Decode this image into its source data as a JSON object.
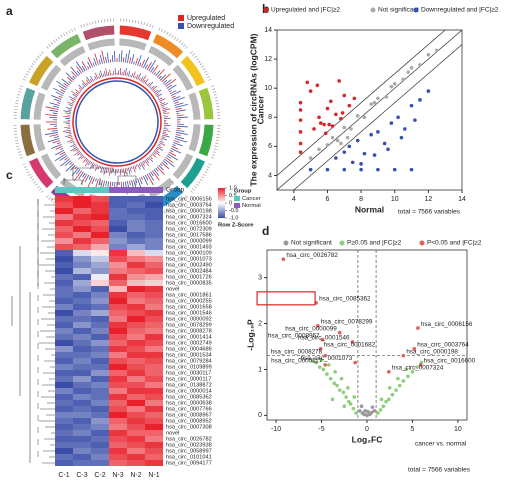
{
  "chart_data": [
    {
      "type": "circos",
      "label": "a",
      "series": [
        {
          "name": "Upregulated",
          "color": "#d62728"
        },
        {
          "name": "Downregulated",
          "color": "#3a50b0"
        }
      ]
    },
    {
      "type": "scatter",
      "label": "b",
      "title": "The expression of circRNAs (logCPM)",
      "x_label": "Normal",
      "y_label": "Cancer",
      "note": "total = 7566 variables",
      "xlim": [
        3,
        14
      ],
      "ylim": [
        3,
        14
      ],
      "xticks": [
        4,
        6,
        8,
        10,
        12,
        14
      ],
      "yticks": [
        4,
        6,
        8,
        10,
        12,
        14
      ],
      "series": [
        {
          "name": "Upregulated and |FC|≥2",
          "color": "#d62728",
          "x": [
            4.4,
            4.4,
            4.4,
            4.4,
            4.4,
            4.4,
            5.2,
            5.5,
            5.8,
            6.0,
            6.2,
            6.5,
            6.8,
            7.0,
            5.4,
            5.9,
            6.3,
            6.7,
            7.3,
            5.0,
            5.6,
            6.1,
            4.8,
            7.6,
            6.9
          ],
          "y": [
            5.6,
            6.2,
            7.0,
            7.8,
            8.5,
            9.0,
            7.2,
            8.0,
            7.5,
            8.6,
            9.1,
            8.2,
            7.9,
            9.5,
            10.2,
            6.9,
            7.4,
            10.5,
            8.8,
            9.8,
            7.6,
            7.5,
            10.4,
            9.3,
            8.3
          ]
        },
        {
          "name": "Not significant",
          "color": "#aaaaaa",
          "x": [
            5.0,
            5.5,
            6.0,
            6.3,
            6.6,
            7.0,
            7.4,
            7.8,
            8.2,
            8.6,
            9.0,
            9.5,
            10.0,
            10.5,
            11.0,
            11.5,
            12.0,
            12.5,
            6.8,
            7.2,
            9.8,
            10.8,
            8.8
          ],
          "y": [
            5.2,
            5.8,
            6.1,
            6.6,
            6.4,
            7.3,
            7.2,
            8.1,
            8.0,
            8.9,
            9.3,
            9.4,
            10.3,
            10.6,
            11.4,
            11.6,
            12.3,
            12.6,
            6.2,
            6.6,
            10.1,
            11.1,
            9.0
          ]
        },
        {
          "name": "Downregulated and |FC|≥2",
          "color": "#3a50b0",
          "x": [
            6.5,
            7.0,
            7.3,
            7.8,
            8.2,
            8.6,
            9.0,
            9.4,
            9.8,
            10.2,
            10.6,
            11.0,
            11.5,
            12.0,
            8.0,
            8.8,
            9.6,
            10.4,
            11.2,
            7.5,
            5.0,
            6.0,
            7.0,
            8.0,
            9.0,
            10.0,
            11.0
          ],
          "y": [
            5.2,
            5.6,
            6.0,
            6.4,
            5.5,
            6.8,
            7.0,
            6.2,
            7.6,
            8.0,
            7.2,
            8.8,
            9.2,
            9.8,
            4.8,
            5.4,
            5.8,
            6.6,
            7.8,
            4.9,
            4.4,
            4.4,
            4.4,
            4.4,
            4.4,
            4.4,
            4.4
          ]
        }
      ]
    },
    {
      "type": "heatmap",
      "label": "c",
      "group_bar_label": "Group",
      "columns": [
        "C-1",
        "C-3",
        "C-2",
        "N-3",
        "N-2",
        "N-1"
      ],
      "column_groups": [
        "Cancer",
        "Cancer",
        "Cancer",
        "Normal",
        "Normal",
        "Normal"
      ],
      "group_legend": {
        "title": "Group",
        "items": [
          {
            "name": "Cancer",
            "color": "#5cc6c0"
          },
          {
            "name": "Normal",
            "color": "#8a5cc0"
          }
        ]
      },
      "colorbar": {
        "title": "Row Z-Score",
        "clim": [
          -1,
          1
        ],
        "colors": [
          "#3a4ea8",
          "#ffffff",
          "#e8202a"
        ],
        "ticks": [
          {
            "value": 1,
            "label": "1.0"
          },
          0.5,
          0,
          -0.5,
          {
            "value": -1,
            "label": "-1.0"
          }
        ]
      },
      "rows": [
        "hsa_circ_0006156",
        "hsa_circ_0003764",
        "hsa_circ_0000198",
        "hsa_circ_0007324",
        "hsa_circ_0016600",
        "hsa_circ_0072309",
        "hsa_circ_0017586",
        "hsa_circ_0000099",
        "hsa_circ_0001493",
        "hsa_circ_0000109",
        "hsa_circ_0001073",
        "hsa_circ_0002490",
        "hsa_circ_0002484",
        "hsa_circ_0001726",
        "hsa_circ_0000835",
        "novel",
        "hsa_circ_0001861",
        "hsa_circ_0000255",
        "hsa_circ_0001658",
        "hsa_circ_0001546",
        "hsa_circ_0000092",
        "hsa_circ_0078299",
        "hsa_circ_0008278",
        "hsa_circ_0001414",
        "hsa_circ_0002749",
        "hsa_circ_0004686",
        "hsa_circ_0001534",
        "hsa_circ_0079284",
        "hsa_circ_0109899",
        "hsa_circ_0030117",
        "hsa_circ_0000117",
        "hsa_circ_0138872",
        "hsa_circ_0000014",
        "hsa_circ_0085362",
        "hsa_circ_0000638",
        "hsa_circ_0007766",
        "hsa_circ_0008967",
        "hsa_circ_0008952",
        "hsa_circ_0007308",
        "novel",
        "hsa_circ_0026782",
        "hsa_circ_0023938",
        "hsa_circ_0058997",
        "hsa_circ_0101041",
        "hsa_circ_0094177"
      ],
      "values": [
        [
          0.9,
          1.0,
          0.8,
          -0.9,
          -0.9,
          -0.9
        ],
        [
          0.8,
          1.0,
          0.9,
          -0.9,
          -0.8,
          -1.0
        ],
        [
          1.0,
          0.7,
          0.9,
          -0.8,
          -0.9,
          -0.9
        ],
        [
          0.6,
          0.9,
          1.0,
          -0.8,
          -0.8,
          -0.9
        ],
        [
          0.9,
          0.8,
          0.7,
          -0.9,
          -0.7,
          -0.8
        ],
        [
          0.7,
          1.0,
          0.8,
          -1.0,
          -0.7,
          -0.8
        ],
        [
          0.8,
          0.6,
          1.0,
          -0.7,
          -0.9,
          -0.8
        ],
        [
          0.5,
          0.9,
          0.7,
          -0.6,
          -0.8,
          -0.7
        ],
        [
          0.8,
          0.7,
          0.4,
          -0.7,
          -0.5,
          -0.7
        ],
        [
          -0.9,
          -0.2,
          0.1,
          0.9,
          0.3,
          -0.2
        ],
        [
          -1.0,
          -0.6,
          -0.3,
          0.8,
          0.6,
          0.5
        ],
        [
          -0.9,
          -0.7,
          -0.5,
          0.5,
          0.9,
          0.7
        ],
        [
          -1.0,
          -0.4,
          -0.6,
          0.6,
          0.7,
          0.8
        ],
        [
          -0.8,
          -0.9,
          -0.1,
          0.9,
          0.5,
          0.4
        ],
        [
          -0.9,
          -0.5,
          0.2,
          0.7,
          0.3,
          0.2
        ],
        [
          -0.8,
          -0.6,
          -0.9,
          0.3,
          1.0,
          0.9
        ],
        [
          -0.8,
          -0.9,
          -0.7,
          0.9,
          0.7,
          0.8
        ],
        [
          -0.9,
          -0.8,
          -0.6,
          1.0,
          0.6,
          0.7
        ],
        [
          -0.7,
          -0.9,
          -0.8,
          0.8,
          0.9,
          0.6
        ],
        [
          -1.0,
          -0.7,
          -0.5,
          0.7,
          0.8,
          0.9
        ],
        [
          -0.8,
          -0.8,
          -0.9,
          0.6,
          1.0,
          0.8
        ],
        [
          -0.9,
          -0.6,
          -0.8,
          0.9,
          0.8,
          0.7
        ],
        [
          -0.7,
          -0.9,
          -0.7,
          1.0,
          0.7,
          0.6
        ],
        [
          -0.8,
          -0.7,
          -0.9,
          0.8,
          0.6,
          0.9
        ],
        [
          -1.0,
          -0.8,
          -0.6,
          0.7,
          0.9,
          0.8
        ],
        [
          -0.6,
          -0.9,
          -0.8,
          0.9,
          0.8,
          0.6
        ],
        [
          -0.8,
          -0.8,
          -0.7,
          0.6,
          0.9,
          0.9
        ],
        [
          -0.9,
          -0.7,
          -0.9,
          0.8,
          0.7,
          0.8
        ],
        [
          -0.7,
          -0.8,
          -0.8,
          1.0,
          0.8,
          0.7
        ],
        [
          -0.9,
          -0.9,
          -0.6,
          0.7,
          0.9,
          0.7
        ],
        [
          -0.8,
          -0.6,
          -0.9,
          0.9,
          0.6,
          0.8
        ],
        [
          -1.0,
          -0.8,
          -0.7,
          0.8,
          0.8,
          0.6
        ],
        [
          -0.7,
          -0.9,
          -0.8,
          0.6,
          0.9,
          0.9
        ],
        [
          -0.9,
          -0.7,
          -0.8,
          0.9,
          0.7,
          0.8
        ],
        [
          -0.8,
          -0.9,
          -0.7,
          0.7,
          1.0,
          0.6
        ],
        [
          -0.9,
          -0.8,
          -0.9,
          0.8,
          0.6,
          0.9
        ],
        [
          -0.7,
          -0.7,
          -0.8,
          1.0,
          0.8,
          0.7
        ],
        [
          -0.8,
          -0.9,
          -0.6,
          0.7,
          0.9,
          0.8
        ],
        [
          -0.9,
          -0.8,
          -0.7,
          0.6,
          0.8,
          1.0
        ],
        [
          -0.8,
          -0.7,
          -0.9,
          0.9,
          0.7,
          0.7
        ],
        [
          -0.9,
          -0.9,
          -0.8,
          0.8,
          0.9,
          0.6
        ],
        [
          -0.8,
          -0.8,
          -0.9,
          0.7,
          0.8,
          0.9
        ],
        [
          -1.0,
          -0.7,
          -0.8,
          0.9,
          0.6,
          0.8
        ],
        [
          -0.8,
          -0.9,
          -0.7,
          0.8,
          0.9,
          0.7
        ],
        [
          -0.9,
          -0.8,
          -0.8,
          0.7,
          0.8,
          0.9
        ]
      ]
    },
    {
      "type": "scatter",
      "label": "d",
      "x_label": "Log₂FC",
      "y_label": "-Log₁₀P",
      "note": "total = 7566 variables",
      "subnote": "cancer vs. normal",
      "xlim": [
        -11,
        11
      ],
      "ylim": [
        -0.1,
        3.6
      ],
      "xticks": [
        -10,
        -5,
        0,
        5,
        10
      ],
      "yticks": [
        0,
        1,
        2,
        3
      ],
      "series": [
        {
          "name": "Not significant",
          "color": "#999999",
          "x": [
            -0.8,
            -0.5,
            -0.3,
            0,
            0.3,
            0.5,
            0.8,
            -0.6,
            0.6,
            0.1,
            -0.2
          ],
          "y": [
            0.1,
            0.05,
            0.02,
            0,
            0.02,
            0.06,
            0.1,
            0.2,
            0.18,
            0.08,
            0.1
          ]
        },
        {
          "name": "P≥0.05 and |FC|≥2",
          "color": "#8fce7a",
          "x": [
            -1.2,
            -1.5,
            -1.8,
            -2.0,
            -2.3,
            -2.6,
            -3.0,
            -3.3,
            -3.6,
            -4.0,
            -4.4,
            -4.8,
            -5.2,
            -5.6,
            -6.0,
            -1.4,
            -2.1,
            -2.8,
            -3.5,
            -4.2,
            -5.0,
            1.2,
            1.5,
            1.8,
            2.1,
            2.4,
            2.8,
            3.2,
            3.6,
            4.0,
            4.5,
            5.0,
            5.5,
            6.0,
            1.6,
            2.5,
            3.4,
            4.3,
            -2.5,
            -3.8
          ],
          "y": [
            0.05,
            0.15,
            0.25,
            0.3,
            0.4,
            0.5,
            0.55,
            0.65,
            0.7,
            0.8,
            0.9,
            1.0,
            1.05,
            1.15,
            1.2,
            0.4,
            0.6,
            0.8,
            0.95,
            1.1,
            1.2,
            0.05,
            0.12,
            0.2,
            0.3,
            0.35,
            0.45,
            0.55,
            0.65,
            0.75,
            0.85,
            0.95,
            1.05,
            1.15,
            0.35,
            0.6,
            0.8,
            1.0,
            0.2,
            0.35
          ]
        },
        {
          "name": "P<0.05 and |FC|≥2",
          "color": "#e06060",
          "x": [
            -9.2,
            -5.6,
            -5.4,
            -3.0,
            -4.9,
            -1.6,
            -5.1,
            -4.6,
            -1.3,
            -4.6,
            5.6,
            5.2,
            4.0,
            5.9,
            2.4
          ],
          "y": [
            3.4,
            2.45,
            1.95,
            1.8,
            1.65,
            1.6,
            1.45,
            1.3,
            1.15,
            1.1,
            1.9,
            1.45,
            1.3,
            1.1,
            0.95
          ],
          "point_labels": [
            "hsa_circ_0026782",
            "hsa_circ_0085362",
            "hsa_circ_0078299",
            "hsa_circ_0000099",
            "hsa_circ_0008967",
            "hsa_circ_0001546",
            "hsa_circ_0001682",
            "hsa_circ_0008278",
            "hsa_circ_0001073",
            "hsa_circ_0000117",
            "hsa_circ_0006156",
            "hsa_circ_0003764",
            "hsa_circ_0000198",
            "hsa_circ_0016600",
            "hsa_circ_0007324"
          ],
          "boxed_label": "hsa_circ_0085362"
        }
      ]
    }
  ]
}
